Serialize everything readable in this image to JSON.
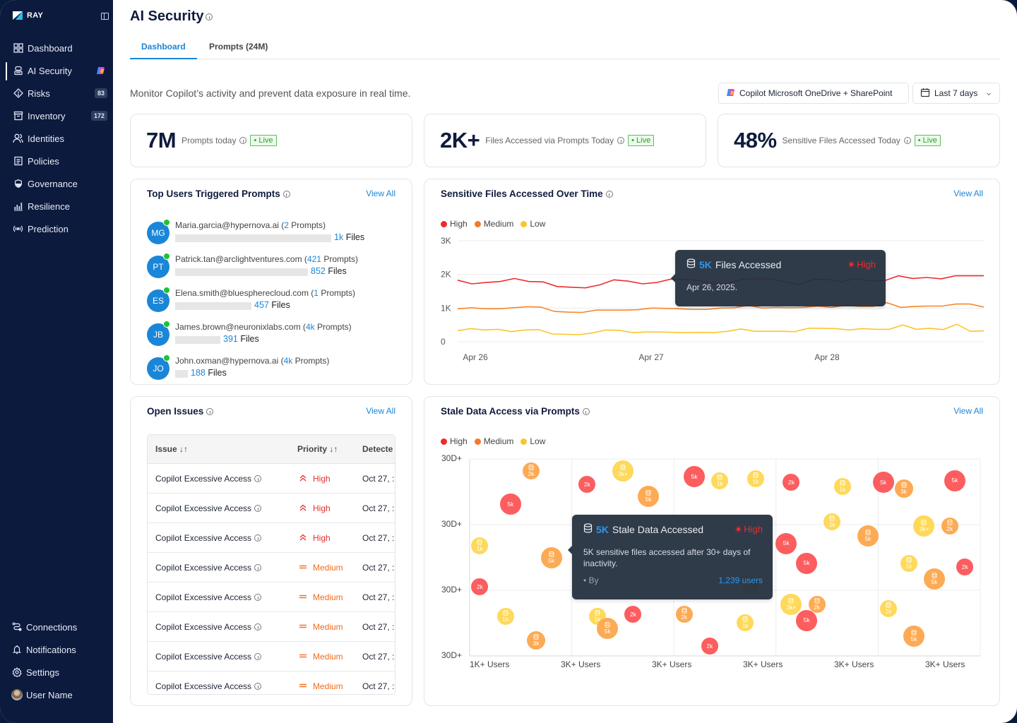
{
  "app": {
    "brand": "RAY"
  },
  "sidebar": {
    "items": [
      {
        "label": "Dashboard",
        "icon": "grid-icon"
      },
      {
        "label": "AI Security",
        "icon": "bot-icon",
        "active": true,
        "badge_icon": "copilot-icon"
      },
      {
        "label": "Risks",
        "icon": "warning-diamond-icon",
        "badge": "83"
      },
      {
        "label": "Inventory",
        "icon": "archive-icon",
        "badge": "172"
      },
      {
        "label": "Identities",
        "icon": "users-icon"
      },
      {
        "label": "Policies",
        "icon": "document-icon"
      },
      {
        "label": "Governance",
        "icon": "shield-icon"
      },
      {
        "label": "Resilience",
        "icon": "bar-chart-icon"
      },
      {
        "label": "Prediction",
        "icon": "broadcast-icon"
      }
    ],
    "bottom": [
      {
        "label": "Connections",
        "icon": "connections-icon"
      },
      {
        "label": "Notifications",
        "icon": "bell-icon"
      },
      {
        "label": "Settings",
        "icon": "gear-icon"
      },
      {
        "label": "User Name",
        "icon": "avatar"
      }
    ]
  },
  "header": {
    "title": "AI Security",
    "tabs": [
      {
        "label": "Dashboard",
        "active": true
      },
      {
        "label": "Prompts (24M)"
      }
    ],
    "subtitle": "Monitor Copilot’s activity and prevent data exposure in real time.",
    "source_filter": "Copilot Microsoft OneDrive + SharePoint",
    "date_filter": "Last 7 days"
  },
  "kpis": [
    {
      "value": "7M",
      "label": "Prompts today",
      "status": "• Live"
    },
    {
      "value": "2K+",
      "label": "Files Accessed via Prompts Today",
      "status": "• Live"
    },
    {
      "value": "48%",
      "label": "Sensitive Files Accessed Today",
      "status": "• Live"
    }
  ],
  "top_users": {
    "title": "Top Users Triggered Prompts",
    "view_all": "View All",
    "users": [
      {
        "initials": "MG",
        "email": "Maria.garcia@hypernova.ai",
        "prompts": "2",
        "files": "1k",
        "files_label": "Files",
        "share": 1.0
      },
      {
        "initials": "PT",
        "email": "Patrick.tan@arclightventures.com",
        "prompts": "421",
        "files": "852",
        "files_label": "Files",
        "share": 0.85
      },
      {
        "initials": "ES",
        "email": "Elena.smith@bluespherecloud.com",
        "prompts": "1",
        "files": "457",
        "files_label": "Files",
        "share": 0.49
      },
      {
        "initials": "JB",
        "email": "James.brown@neuronixlabs.com",
        "prompts": "4k",
        "files": "391",
        "files_label": "Files",
        "share": 0.29
      },
      {
        "initials": "JO",
        "email": "John.oxman@hypernova.ai",
        "prompts": "4k",
        "files": "188",
        "files_label": "Files",
        "share": 0.08
      }
    ],
    "prompts_label": "Prompts"
  },
  "sensitive_chart": {
    "title": "Sensitive Files Accessed Over Time",
    "view_all": "View All",
    "tooltip": {
      "value": "5K",
      "label": "Files Accessed",
      "severity": "High",
      "date": "Apr 26, 2025."
    }
  },
  "open_issues": {
    "title": "Open Issues",
    "view_all": "View All",
    "columns": [
      "Issue",
      "Priority",
      "Detecte"
    ],
    "rows": [
      {
        "issue": "Copilot Excessive Access",
        "priority": "High",
        "detected": "Oct 27, :"
      },
      {
        "issue": "Copilot Excessive Access",
        "priority": "High",
        "detected": "Oct 27, :"
      },
      {
        "issue": "Copilot Excessive Access",
        "priority": "High",
        "detected": "Oct 27, :"
      },
      {
        "issue": "Copilot Excessive Access",
        "priority": "Medium",
        "detected": "Oct 27, :"
      },
      {
        "issue": "Copilot Excessive Access",
        "priority": "Medium",
        "detected": "Oct 27, :"
      },
      {
        "issue": "Copilot Excessive Access",
        "priority": "Medium",
        "detected": "Oct 27, :"
      },
      {
        "issue": "Copilot Excessive Access",
        "priority": "Medium",
        "detected": "Oct 27, :"
      },
      {
        "issue": "Copilot Excessive Access",
        "priority": "Medium",
        "detected": "Oct 27, :"
      }
    ]
  },
  "stale_chart": {
    "title": "Stale Data Access via Prompts",
    "view_all": "View All",
    "tooltip": {
      "value": "5K",
      "label": "Stale Data Accessed",
      "severity": "High",
      "body": "5K sensitive files accessed after 30+ days of inactivity.",
      "by": "• By",
      "users": "1,239 users"
    }
  },
  "colors": {
    "high": "#f0282b",
    "medium": "#f6782a",
    "low": "#fbc52a",
    "accent": "#1a86d8",
    "sidebar": "#0c1a3e"
  },
  "chart_data": [
    {
      "type": "line",
      "title": "Sensitive Files Accessed Over Time",
      "legend": [
        "High",
        "Medium",
        "Low"
      ],
      "legend_position": "top-left",
      "x_tick_labels": [
        "Apr 26",
        "Apr 27",
        "Apr 28"
      ],
      "y_tick_labels": [
        "0",
        "1K",
        "2K",
        "3K"
      ],
      "ylim": [
        0,
        3000
      ],
      "grid": true,
      "series": [
        {
          "name": "High",
          "values": [
            1830,
            1720,
            1760,
            1790,
            1880,
            1790,
            1780,
            1640,
            1620,
            1600,
            1690,
            1840,
            1800,
            1720,
            1760,
            1860,
            1850,
            1820,
            1700,
            1730,
            1860,
            1870,
            1870,
            1780,
            1700,
            1850,
            1850,
            1780,
            1880,
            1810,
            1810,
            1960,
            1880,
            1910,
            1870,
            1960,
            1960,
            1960
          ]
        },
        {
          "name": "Medium",
          "values": [
            980,
            1010,
            980,
            980,
            1010,
            1040,
            1030,
            900,
            880,
            870,
            940,
            940,
            940,
            950,
            1000,
            990,
            980,
            960,
            960,
            1000,
            1010,
            1080,
            1000,
            1020,
            1010,
            1020,
            1060,
            1020,
            1080,
            1050,
            1050,
            1160,
            1020,
            1050,
            1060,
            1060,
            1120,
            1120,
            1030
          ]
        },
        {
          "name": "Low",
          "values": [
            330,
            390,
            350,
            370,
            300,
            350,
            360,
            230,
            220,
            210,
            260,
            350,
            340,
            270,
            290,
            290,
            280,
            270,
            280,
            270,
            310,
            380,
            310,
            310,
            310,
            300,
            400,
            400,
            390,
            350,
            390,
            370,
            370,
            500,
            370,
            400,
            360,
            520,
            310,
            320
          ]
        }
      ]
    },
    {
      "type": "scatter",
      "title": "Stale Data Access via Prompts",
      "legend": [
        "High",
        "Medium",
        "Low"
      ],
      "legend_position": "top-left",
      "x_tick_labels": [
        "1K+ Users",
        "3K+ Users",
        "3K+ Users",
        "3K+ Users",
        "3K+ Users",
        "3K+ Users"
      ],
      "y_tick_labels": [
        "30D+",
        "30D+",
        "30D+",
        "30D+"
      ],
      "grid": true,
      "points": [
        {
          "x": 0.12,
          "y": 0.94,
          "sev": "Medium",
          "label": "2k"
        },
        {
          "x": 0.08,
          "y": 0.77,
          "sev": "High",
          "label": "5k"
        },
        {
          "x": 0.02,
          "y": 0.56,
          "sev": "Low",
          "label": "1k"
        },
        {
          "x": 0.16,
          "y": 0.5,
          "sev": "Medium",
          "label": "5k"
        },
        {
          "x": 0.02,
          "y": 0.35,
          "sev": "High",
          "label": "2k"
        },
        {
          "x": 0.07,
          "y": 0.2,
          "sev": "Low",
          "label": "1k"
        },
        {
          "x": 0.13,
          "y": 0.08,
          "sev": "Medium",
          "label": "3k"
        },
        {
          "x": 0.23,
          "y": 0.87,
          "sev": "High",
          "label": "2k"
        },
        {
          "x": 0.3,
          "y": 0.94,
          "sev": "Low",
          "label": "3k+"
        },
        {
          "x": 0.35,
          "y": 0.81,
          "sev": "Medium",
          "label": "5k"
        },
        {
          "x": 0.25,
          "y": 0.2,
          "sev": "Low",
          "label": "1k"
        },
        {
          "x": 0.27,
          "y": 0.14,
          "sev": "Medium",
          "label": "5k"
        },
        {
          "x": 0.32,
          "y": 0.21,
          "sev": "High",
          "label": "2k"
        },
        {
          "x": 0.44,
          "y": 0.91,
          "sev": "High",
          "label": "5k"
        },
        {
          "x": 0.49,
          "y": 0.89,
          "sev": "Low",
          "label": "1k"
        },
        {
          "x": 0.56,
          "y": 0.9,
          "sev": "Low",
          "label": "1k"
        },
        {
          "x": 0.42,
          "y": 0.21,
          "sev": "Medium",
          "label": "2k"
        },
        {
          "x": 0.47,
          "y": 0.05,
          "sev": "High",
          "label": "2k"
        },
        {
          "x": 0.54,
          "y": 0.17,
          "sev": "Low",
          "label": "1k"
        },
        {
          "x": 0.63,
          "y": 0.88,
          "sev": "High",
          "label": "2k"
        },
        {
          "x": 0.73,
          "y": 0.86,
          "sev": "Low",
          "label": "1k"
        },
        {
          "x": 0.81,
          "y": 0.88,
          "sev": "High",
          "label": "5k"
        },
        {
          "x": 0.85,
          "y": 0.85,
          "sev": "Medium",
          "label": "3k"
        },
        {
          "x": 0.95,
          "y": 0.89,
          "sev": "High",
          "label": "5k"
        },
        {
          "x": 0.71,
          "y": 0.68,
          "sev": "Low",
          "label": "1k"
        },
        {
          "x": 0.78,
          "y": 0.61,
          "sev": "Medium",
          "label": "5k"
        },
        {
          "x": 0.62,
          "y": 0.57,
          "sev": "High",
          "label": "5k"
        },
        {
          "x": 0.66,
          "y": 0.47,
          "sev": "High",
          "label": "5k"
        },
        {
          "x": 0.89,
          "y": 0.66,
          "sev": "Low",
          "label": "3k+"
        },
        {
          "x": 0.94,
          "y": 0.66,
          "sev": "Medium",
          "label": "2k"
        },
        {
          "x": 0.86,
          "y": 0.47,
          "sev": "Low",
          "label": "1k"
        },
        {
          "x": 0.91,
          "y": 0.39,
          "sev": "Medium",
          "label": "5k"
        },
        {
          "x": 0.97,
          "y": 0.45,
          "sev": "High",
          "label": "2k"
        },
        {
          "x": 0.63,
          "y": 0.26,
          "sev": "Low",
          "label": "3k+"
        },
        {
          "x": 0.68,
          "y": 0.26,
          "sev": "Medium",
          "label": "2k"
        },
        {
          "x": 0.66,
          "y": 0.18,
          "sev": "High",
          "label": "5k"
        },
        {
          "x": 0.55,
          "y": 0.36,
          "sev": "Low",
          "label": "1k"
        },
        {
          "x": 0.82,
          "y": 0.24,
          "sev": "Low",
          "label": "1k"
        },
        {
          "x": 0.87,
          "y": 0.1,
          "sev": "Medium",
          "label": "5k"
        }
      ]
    }
  ]
}
